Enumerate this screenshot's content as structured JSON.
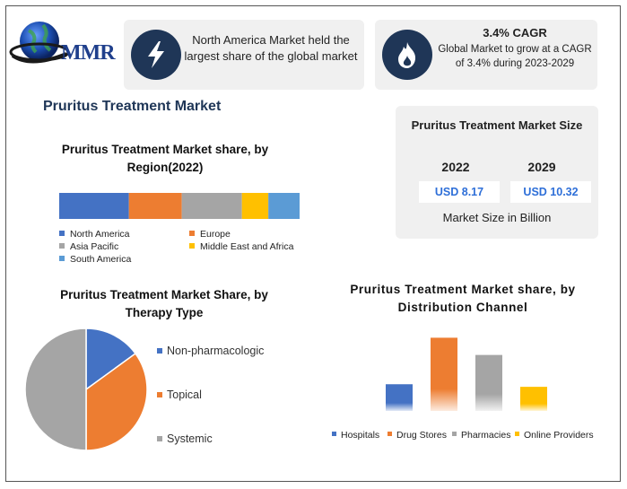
{
  "logo": {
    "text": "MMR"
  },
  "info_cards": [
    {
      "icon": "lightning-bolt-icon",
      "text": "North America Market held the largest share of the global market"
    },
    {
      "icon": "flame-icon",
      "title": "3.4% CAGR",
      "text": "Global Market to grow at a CAGR of 3.4% during 2023-2029"
    }
  ],
  "page_title": "Pruritus Treatment Market",
  "market_size": {
    "title": "Pruritus Treatment Market Size",
    "years": [
      "2022",
      "2029"
    ],
    "values": [
      "USD 8.17",
      "USD 10.32"
    ],
    "caption": "Market Size in Billion"
  },
  "colors": {
    "navy": "#1f3657",
    "blue": "#4472c4",
    "orange": "#ed7d31",
    "gray": "#a5a5a5",
    "gold": "#ffc000",
    "lightblue": "#5b9bd5",
    "value_blue": "#2e6fd8"
  },
  "chart_data": [
    {
      "type": "bar",
      "orientation": "horizontal-stacked",
      "title": "Pruritus Treatment Market share, by Region(2022)",
      "series": [
        {
          "name": "North America",
          "value": 29,
          "color": "#4472c4"
        },
        {
          "name": "Europe",
          "value": 22,
          "color": "#ed7d31"
        },
        {
          "name": "Asia Pacific",
          "value": 25,
          "color": "#a5a5a5"
        },
        {
          "name": "Middle East and Africa",
          "value": 11,
          "color": "#ffc000"
        },
        {
          "name": "South America",
          "value": 13,
          "color": "#5b9bd5"
        }
      ],
      "legend": "bottom"
    },
    {
      "type": "pie",
      "title": "Pruritus Treatment Market Share, by Therapy Type",
      "slices": [
        {
          "name": "Non-pharmacologic",
          "value": 15,
          "color": "#4472c4"
        },
        {
          "name": "Topical",
          "value": 35,
          "color": "#ed7d31"
        },
        {
          "name": "Systemic",
          "value": 50,
          "color": "#a5a5a5"
        }
      ],
      "legend": "right"
    },
    {
      "type": "bar",
      "title": "Pruritus Treatment Market share, by Distribution Channel",
      "categories": [
        "Hospitals",
        "Drug Stores",
        "Pharmacies",
        "Online Providers"
      ],
      "values": [
        31,
        85,
        65,
        28
      ],
      "colors": [
        "#4472c4",
        "#ed7d31",
        "#a5a5a5",
        "#ffc000"
      ],
      "ylim": [
        0,
        100
      ],
      "legend": "bottom",
      "grid": false
    }
  ]
}
